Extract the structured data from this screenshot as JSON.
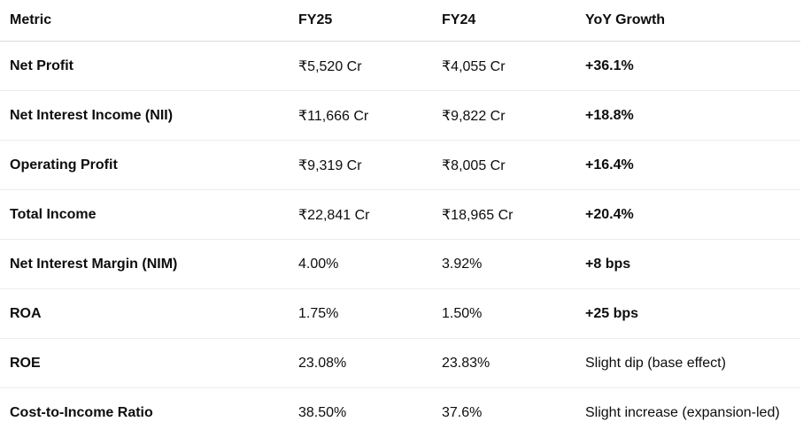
{
  "table": {
    "headers": [
      "Metric",
      "FY25",
      "FY24",
      "YoY Growth"
    ],
    "rows": [
      {
        "metric": "Net Profit",
        "fy25": "₹5,520 Cr",
        "fy24": "₹4,055 Cr",
        "growth": "+36.1%",
        "growth_bold": true
      },
      {
        "metric": "Net Interest Income (NII)",
        "fy25": "₹11,666 Cr",
        "fy24": "₹9,822 Cr",
        "growth": "+18.8%",
        "growth_bold": true
      },
      {
        "metric": "Operating Profit",
        "fy25": "₹9,319 Cr",
        "fy24": "₹8,005 Cr",
        "growth": "+16.4%",
        "growth_bold": true
      },
      {
        "metric": "Total Income",
        "fy25": "₹22,841 Cr",
        "fy24": "₹18,965 Cr",
        "growth": "+20.4%",
        "growth_bold": true
      },
      {
        "metric": "Net Interest Margin (NIM)",
        "fy25": "4.00%",
        "fy24": "3.92%",
        "growth": "+8 bps",
        "growth_bold": true
      },
      {
        "metric": "ROA",
        "fy25": "1.75%",
        "fy24": "1.50%",
        "growth": "+25 bps",
        "growth_bold": true
      },
      {
        "metric": "ROE",
        "fy25": "23.08%",
        "fy24": "23.83%",
        "growth": "Slight dip (base effect)",
        "growth_bold": false
      },
      {
        "metric": "Cost-to-Income Ratio",
        "fy25": "38.50%",
        "fy24": "37.6%",
        "growth": "Slight increase (expansion-led)",
        "growth_bold": false
      }
    ]
  }
}
